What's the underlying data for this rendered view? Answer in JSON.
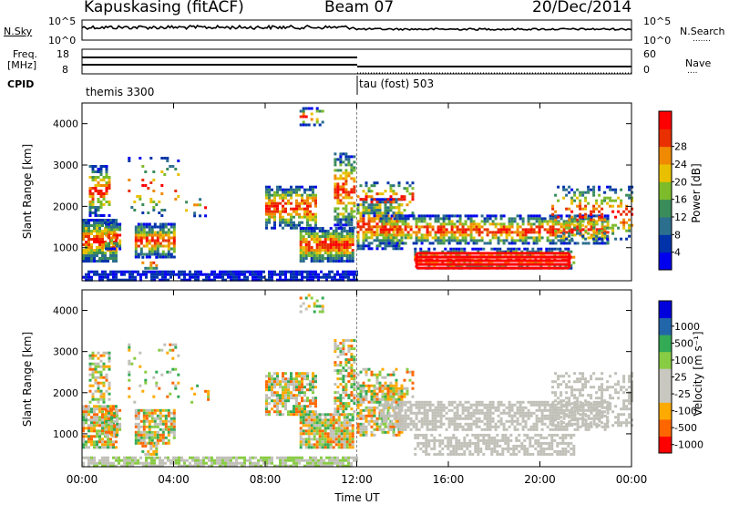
{
  "header": {
    "station": "Kapuskasing (fitACF)",
    "beam": "Beam 07",
    "date": "20/Dec/2014"
  },
  "strip_panel": {
    "left_label": "N.Sky",
    "right_label": "N.Search",
    "left_ticks": [
      "10^5",
      "10^0"
    ],
    "right_ticks": [
      "10^5",
      "10^0"
    ]
  },
  "freq_panel": {
    "left_label_line1": "Freq.",
    "left_label_line2": "[MHz]",
    "right_label": "Nave",
    "left_ticks": [
      "18",
      "8"
    ],
    "right_ticks": [
      "60",
      "0"
    ]
  },
  "cpid": {
    "label": "CPID",
    "mode1": "themis 3300",
    "mode2": "tau (fost) 503"
  },
  "axes": {
    "ylabel": "Slant Range [km]",
    "xlabel": "Time UT",
    "x_ticks": [
      "00:00",
      "04:00",
      "08:00",
      "12:00",
      "16:00",
      "20:00",
      "00:00"
    ],
    "y_ticks": [
      "1000",
      "2000",
      "3000",
      "4000"
    ],
    "y_range_km": [
      200,
      4500
    ],
    "x_range_hours": [
      0,
      24
    ],
    "mode_change_hour": 12
  },
  "colors": {
    "power_scale": [
      "#0000ee",
      "#0033aa",
      "#2c6e8e",
      "#3a8c5a",
      "#7dbb2a",
      "#e8c000",
      "#f08a00",
      "#e83000",
      "#ff0000"
    ],
    "velocity_scale": [
      "#ff0000",
      "#ff6600",
      "#ffaa00",
      "#c8c8c0",
      "#c8c8c0",
      "#88cc44",
      "#33aa55",
      "#2266aa",
      "#0000dd"
    ],
    "ground_scatter": "#c0c0b8"
  },
  "power_colorbar": {
    "label": "Power [dB]",
    "ticks": [
      "4",
      "8",
      "12",
      "16",
      "20",
      "24",
      "28"
    ]
  },
  "velocity_colorbar": {
    "label": "Velocity [m s⁻¹]",
    "ticks": [
      "-1000",
      "-500",
      "-100",
      "-25",
      "25",
      "100",
      "500",
      "1000"
    ]
  }
}
